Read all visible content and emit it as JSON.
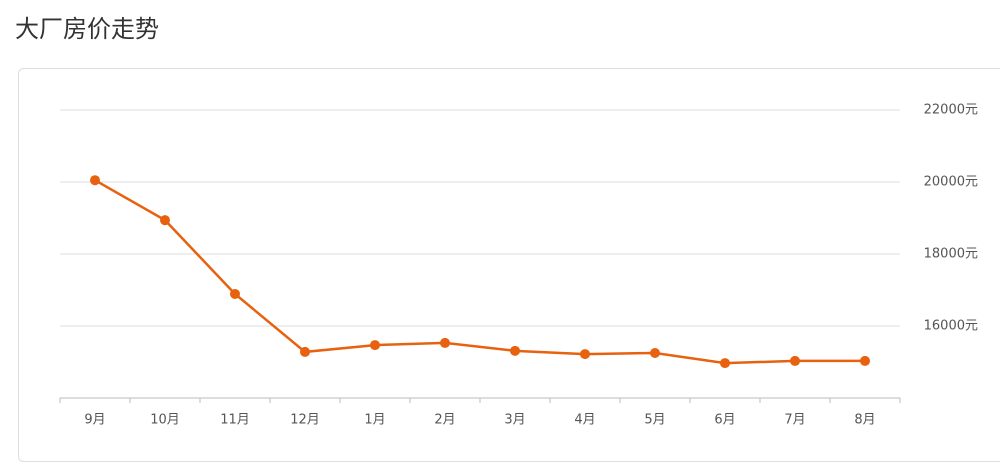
{
  "chart_data": {
    "type": "line",
    "title": "大厂房价走势",
    "categories": [
      "9月",
      "10月",
      "11月",
      "12月",
      "1月",
      "2月",
      "3月",
      "4月",
      "5月",
      "6月",
      "7月",
      "8月"
    ],
    "values": [
      20050,
      18940,
      16890,
      15280,
      15470,
      15530,
      15310,
      15220,
      15250,
      14970,
      15030,
      15030
    ],
    "color": "#e8610f",
    "ylim": [
      14000,
      22000
    ],
    "yticks": [
      {
        "value": 16000,
        "label": "16000元"
      },
      {
        "value": 18000,
        "label": "18000元"
      },
      {
        "value": 20000,
        "label": "20000元"
      },
      {
        "value": 22000,
        "label": "22000元"
      }
    ],
    "grid": true
  }
}
